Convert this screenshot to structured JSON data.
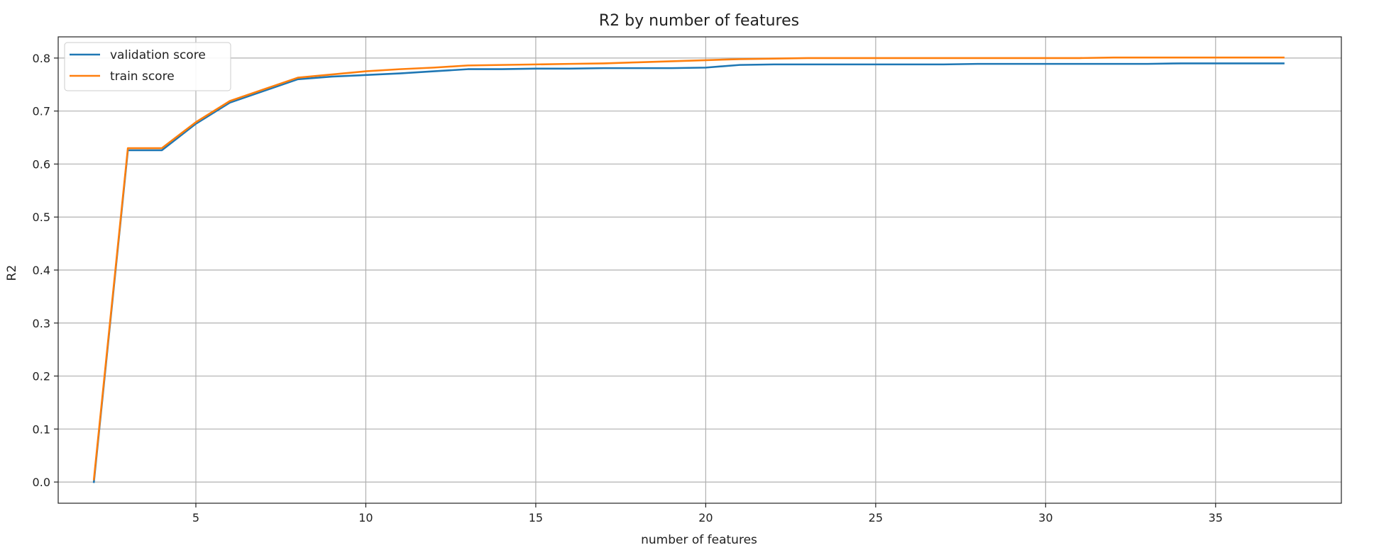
{
  "chart_data": {
    "type": "line",
    "title": "R2 by number of features",
    "xlabel": "number of features",
    "ylabel": "R2",
    "xlim": [
      0.95,
      38.7
    ],
    "ylim": [
      -0.04,
      0.84
    ],
    "xticks": [
      5,
      10,
      15,
      20,
      25,
      30,
      35
    ],
    "yticks": [
      0.0,
      0.1,
      0.2,
      0.3,
      0.4,
      0.5,
      0.6,
      0.7,
      0.8
    ],
    "ytick_labels": [
      "0.0",
      "0.1",
      "0.2",
      "0.3",
      "0.4",
      "0.5",
      "0.6",
      "0.7",
      "0.8"
    ],
    "grid": true,
    "legend_position": "top-left",
    "x": [
      2,
      3,
      4,
      5,
      6,
      7,
      8,
      9,
      10,
      11,
      12,
      13,
      14,
      15,
      16,
      17,
      18,
      19,
      20,
      21,
      22,
      23,
      24,
      25,
      26,
      27,
      28,
      29,
      30,
      31,
      32,
      33,
      34,
      35,
      36,
      37
    ],
    "series": [
      {
        "name": "validation score",
        "color": "#1f77b4",
        "values": [
          0.0,
          0.626,
          0.626,
          0.676,
          0.716,
          0.738,
          0.76,
          0.765,
          0.768,
          0.771,
          0.775,
          0.779,
          0.779,
          0.78,
          0.78,
          0.781,
          0.781,
          0.781,
          0.782,
          0.787,
          0.788,
          0.788,
          0.788,
          0.788,
          0.788,
          0.788,
          0.789,
          0.789,
          0.789,
          0.789,
          0.789,
          0.789,
          0.79,
          0.79,
          0.79,
          0.79
        ]
      },
      {
        "name": "train score",
        "color": "#ff7f0e",
        "values": [
          0.005,
          0.63,
          0.63,
          0.679,
          0.719,
          0.741,
          0.763,
          0.769,
          0.775,
          0.779,
          0.782,
          0.786,
          0.787,
          0.788,
          0.789,
          0.79,
          0.792,
          0.794,
          0.796,
          0.798,
          0.799,
          0.8,
          0.8,
          0.8,
          0.8,
          0.8,
          0.8,
          0.8,
          0.8,
          0.8,
          0.801,
          0.801,
          0.801,
          0.801,
          0.801,
          0.801
        ]
      }
    ]
  }
}
